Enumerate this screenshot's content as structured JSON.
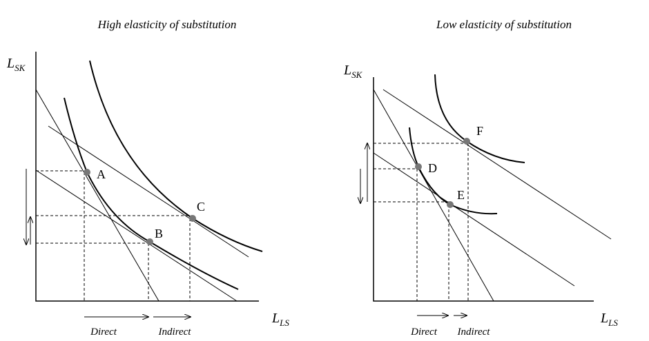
{
  "panels": [
    {
      "title": "High elasticity of substitution",
      "y_axis": {
        "main": "L",
        "sub": "SK"
      },
      "x_axis": {
        "main": "L",
        "sub": "LS"
      },
      "points": [
        "A",
        "B",
        "C"
      ],
      "arrows": [
        "Direct",
        "Indirect"
      ]
    },
    {
      "title": "Low elasticity of substitution",
      "y_axis": {
        "main": "L",
        "sub": "SK"
      },
      "x_axis": {
        "main": "L",
        "sub": "LS"
      },
      "points": [
        "D",
        "E",
        "F"
      ],
      "arrows": [
        "Direct",
        "Indirect"
      ]
    }
  ]
}
